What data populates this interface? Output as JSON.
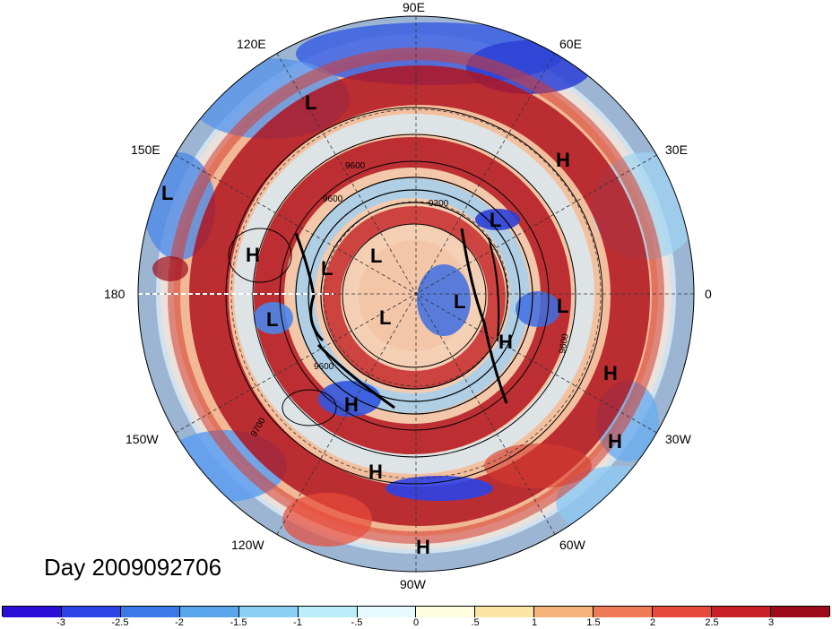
{
  "title": "Day 2009092706",
  "longitude_labels": [
    {
      "name": "lon-90e",
      "text": "90E"
    },
    {
      "name": "lon-60e",
      "text": "60E"
    },
    {
      "name": "lon-30e",
      "text": "30E"
    },
    {
      "name": "lon-0",
      "text": "0"
    },
    {
      "name": "lon-30w",
      "text": "30W"
    },
    {
      "name": "lon-60w",
      "text": "60W"
    },
    {
      "name": "lon-90w",
      "text": "90W"
    },
    {
      "name": "lon-120w",
      "text": "120W"
    },
    {
      "name": "lon-150w",
      "text": "150W"
    },
    {
      "name": "lon-180",
      "text": "180"
    },
    {
      "name": "lon-150e",
      "text": "150E"
    },
    {
      "name": "lon-120e",
      "text": "120E"
    }
  ],
  "pressure_centers": [
    "L",
    "L",
    "H",
    "L",
    "H",
    "L",
    "L",
    "L",
    "L",
    "L",
    "L",
    "H",
    "H",
    "H",
    "H",
    "H",
    "H"
  ],
  "contour_labels": [
    "9300",
    "9600",
    "9600",
    "9600",
    "9700",
    "9600"
  ],
  "colorbar": {
    "colors": [
      "#2c0fd6",
      "#2d43e8",
      "#3a79e6",
      "#5aa6ee",
      "#8bcff5",
      "#b9eefa",
      "#e6fbfd",
      "#fffde0",
      "#fbe5a4",
      "#f5b47a",
      "#ee7a56",
      "#e64a3a",
      "#c81f26",
      "#9c0b1c"
    ],
    "tick_labels": [
      "-3",
      "-2.5",
      "-2",
      "-1.5",
      "-1",
      "-.5",
      "0",
      ".5",
      "1",
      "1.5",
      "2",
      "2.5",
      "3"
    ]
  }
}
